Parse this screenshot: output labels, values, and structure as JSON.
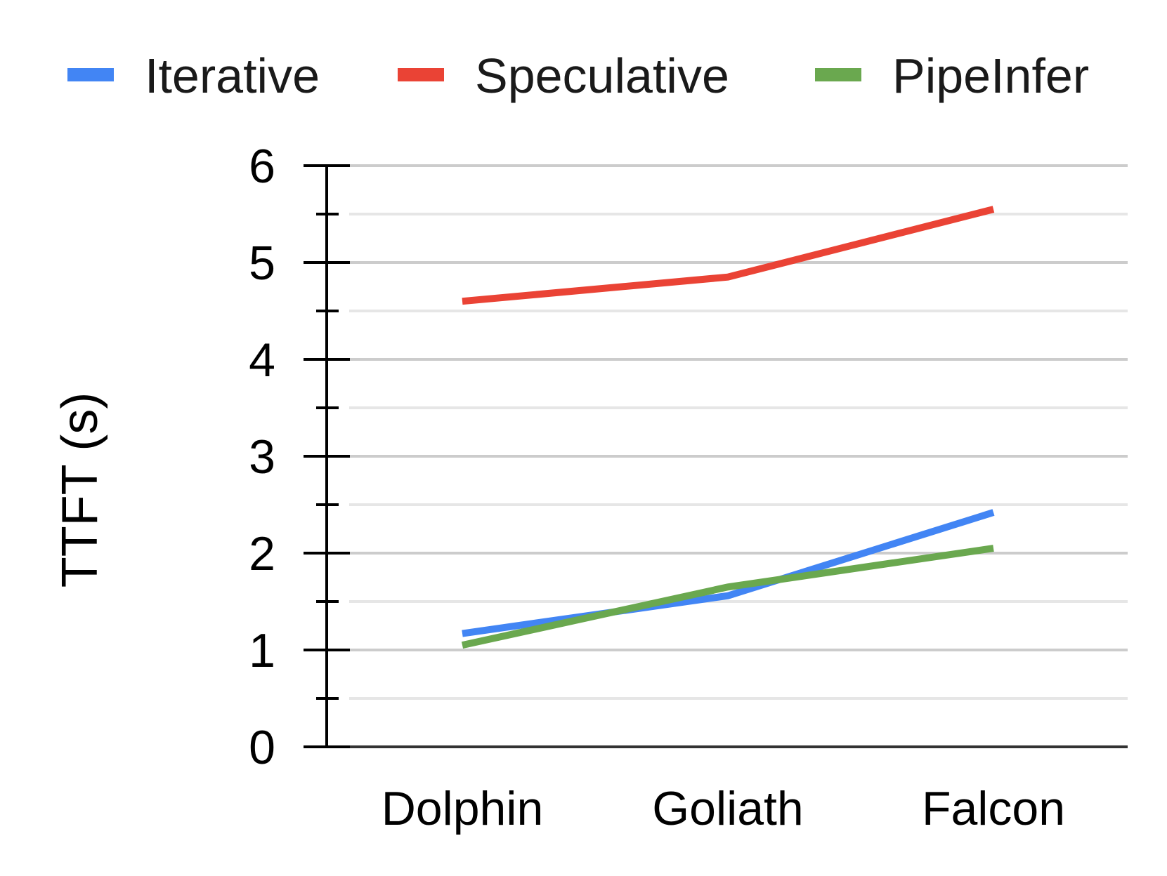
{
  "chart_data": {
    "type": "line",
    "categories": [
      "Dolphin",
      "Goliath",
      "Falcon"
    ],
    "series": [
      {
        "name": "Iterative",
        "color": "#4285f4",
        "values": [
          1.17,
          1.56,
          2.42
        ]
      },
      {
        "name": "Speculative",
        "color": "#ea4335",
        "values": [
          4.6,
          4.85,
          5.55
        ]
      },
      {
        "name": "PipeInfer",
        "color": "#6aa84f",
        "values": [
          1.05,
          1.65,
          2.05
        ]
      }
    ],
    "title": "",
    "xlabel": "",
    "ylabel": "TTFT (s)",
    "ylim": [
      0,
      6
    ],
    "yticks": [
      "0",
      "1",
      "2",
      "3",
      "4",
      "5",
      "6"
    ],
    "grid": true,
    "legend_position": "top"
  }
}
